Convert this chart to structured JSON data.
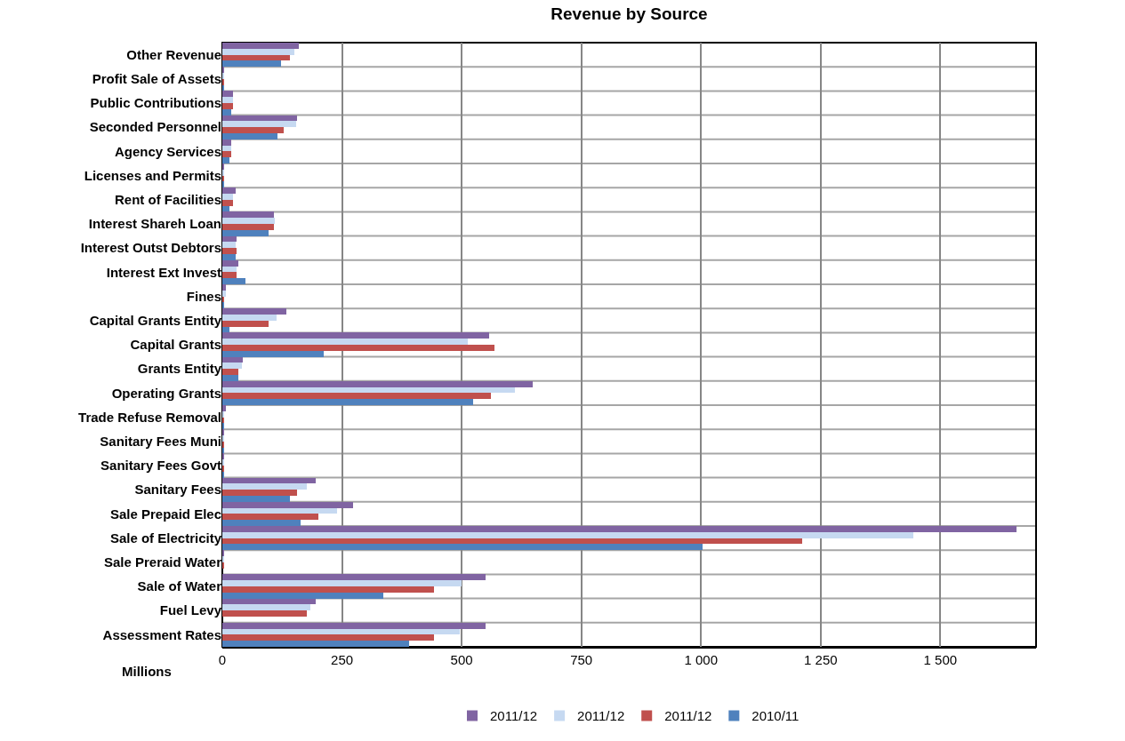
{
  "chart_data": {
    "type": "bar",
    "orientation": "horizontal",
    "title": "Revenue by Source",
    "xlabel": "Millions",
    "categories": [
      "Other Revenue",
      "Profit Sale of Assets",
      "Public Contributions",
      "Seconded Personnel",
      "Agency Services",
      "Licenses and Permits",
      "Rent of Facilities",
      "Interest Shareh Loan",
      "Interest Outst Debtors",
      "Interest Ext Invest",
      "Fines",
      "Capital Grants Entity",
      "Capital Grants",
      "Grants Entity",
      "Operating Grants",
      "Trade Refuse Removal",
      "Sanitary Fees Muni",
      "Sanitary Fees Govt",
      "Sanitary Fees",
      "Sale Prepaid Elec",
      "Sale of Electricity",
      "Sale Preraid Water",
      "Sale of Water",
      "Fuel Levy",
      "Assessment Rates"
    ],
    "series": [
      {
        "name": "2011/12",
        "color": "#8064a2",
        "values": [
          160,
          4,
          23,
          156,
          19,
          4,
          27,
          108,
          30,
          34,
          8,
          133,
          557,
          42,
          649,
          8,
          4,
          4,
          196,
          274,
          1659,
          3,
          550,
          196,
          550
        ]
      },
      {
        "name": "2011/12",
        "color": "#c6d9f1",
        "values": [
          150,
          3,
          23,
          154,
          19,
          3,
          23,
          110,
          27,
          30,
          8,
          114,
          512,
          40,
          611,
          4,
          3,
          3,
          177,
          240,
          1444,
          3,
          500,
          183,
          496
        ]
      },
      {
        "name": "2011/12",
        "color": "#c0504d",
        "values": [
          141,
          4,
          23,
          129,
          19,
          4,
          23,
          108,
          30,
          30,
          4,
          97,
          569,
          34,
          561,
          4,
          4,
          4,
          156,
          200,
          1212,
          3,
          443,
          177,
          443
        ]
      },
      {
        "name": "2010/11",
        "color": "#4f81bd",
        "values": [
          122,
          4,
          19,
          116,
          15,
          4,
          15,
          97,
          27,
          49,
          4,
          15,
          211,
          34,
          523,
          4,
          4,
          4,
          141,
          164,
          1003,
          0,
          336,
          0,
          391
        ]
      }
    ],
    "xlim": [
      0,
      1700
    ],
    "xticks": [
      0,
      250,
      500,
      750,
      {
        "value": 1000,
        "label": "1 000"
      },
      {
        "value": 1250,
        "label": "1 250"
      },
      {
        "value": 1500,
        "label": "1 500"
      }
    ],
    "grid": true,
    "legend": "bottom"
  }
}
